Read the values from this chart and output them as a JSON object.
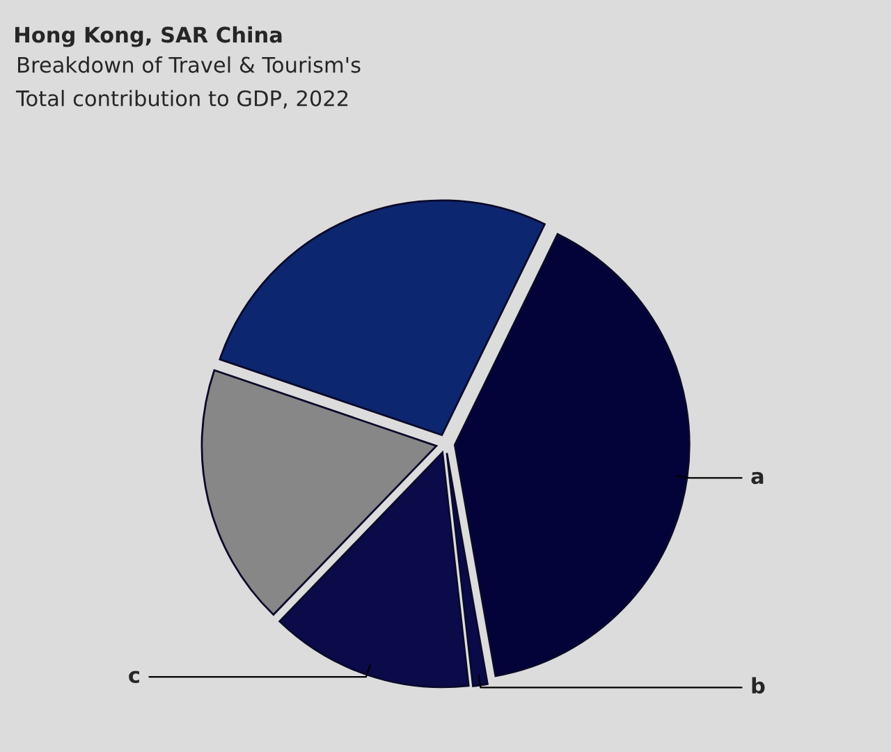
{
  "chart_data": {
    "type": "pie",
    "title": "Hong Kong, SAR China",
    "subtitle": "Breakdown of Travel & Tourism's\nTotal contribution to GDP, 2022",
    "categories": [
      "a",
      "b",
      "c",
      null,
      null
    ],
    "values": [
      40,
      1,
      14,
      18,
      27
    ],
    "colors": [
      "#03033a",
      "#0a0a48",
      "#0b0b4a",
      "#878787",
      "#0d2670"
    ]
  }
}
